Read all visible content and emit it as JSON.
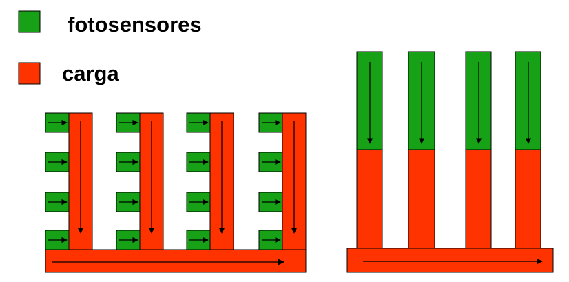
{
  "legend": {
    "items": [
      {
        "label": "fotosensores",
        "color": "#16A116"
      },
      {
        "label": "carga",
        "color": "#FF3300"
      }
    ]
  },
  "colors": {
    "photosensor": "#16A116",
    "charge": "#FF3300",
    "stroke": "#000000",
    "background": "#FFFFFF"
  },
  "diagrams": [
    {
      "name": "interline-transfer",
      "columns": 4,
      "photosensors_per_column": 4,
      "transfer_direction": "photosensor to vertical charge column, down, then right along horizontal register"
    },
    {
      "name": "frame-transfer",
      "columns": 4,
      "transfer_direction": "photosensor area down into storage, then right along horizontal register"
    }
  ]
}
